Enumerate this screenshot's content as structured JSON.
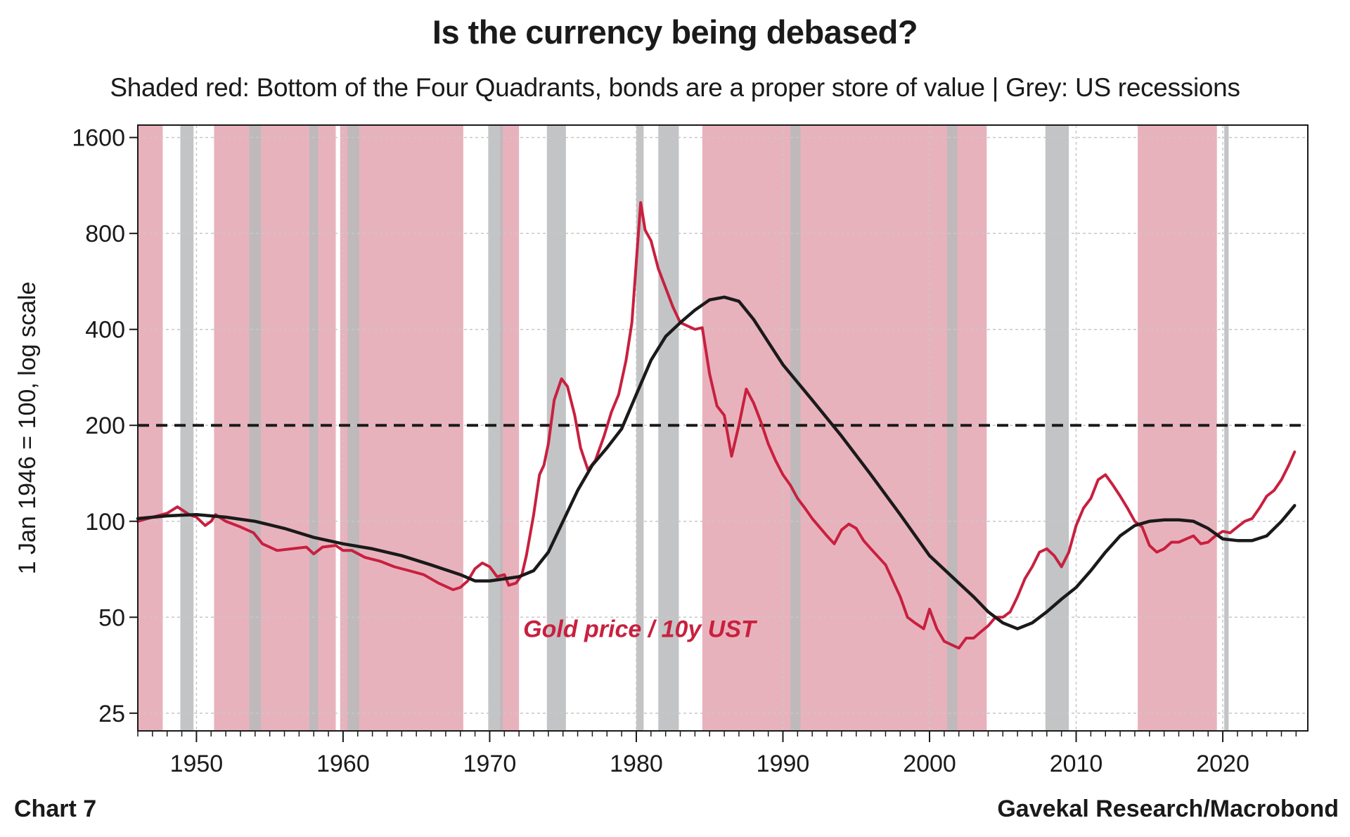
{
  "header": {
    "title": "Is the currency being debased?",
    "subtitle": "Shaded red: Bottom of the Four Quadrants, bonds are a proper store of value | Grey: US recessions"
  },
  "footer": {
    "chart_number": "Chart 7",
    "source": "Gavekal Research/Macrobond"
  },
  "chart_data": {
    "type": "line",
    "title": "Is the currency being debased?",
    "ylabel": "1 Jan 1946 = 100, log scale",
    "xlabel": "",
    "y_scale": "log2",
    "xlim": [
      1946.0,
      2025.8
    ],
    "ylim": [
      22,
      1750
    ],
    "y_ticks": [
      25,
      50,
      100,
      200,
      400,
      800,
      1600
    ],
    "y_tick_labels": [
      "25",
      "50",
      "100",
      "200",
      "400",
      "800",
      "1600"
    ],
    "x_ticks": [
      1950,
      1960,
      1970,
      1980,
      1990,
      2000,
      2010,
      2020
    ],
    "x_tick_labels": [
      "1950",
      "1960",
      "1970",
      "1980",
      "1990",
      "2000",
      "2010",
      "2020"
    ],
    "reference_line": {
      "value": 200,
      "style": "dashed",
      "color": "#1a1a1a"
    },
    "annotation": {
      "text": "Gold price / 10y UST",
      "x": 1972.0,
      "y": 46,
      "color": "#c8203f"
    },
    "colors": {
      "red_shade": "#e8b2bd",
      "grey_shade": "#b9babc",
      "gold_line": "#c8203f",
      "trend_line": "#1a1a1a",
      "grid": "#c8c8c8"
    },
    "red_shaded_periods": [
      [
        1946.0,
        1947.7
      ],
      [
        1951.2,
        1959.5
      ],
      [
        1959.8,
        1968.2
      ],
      [
        1970.7,
        1972.0
      ],
      [
        1984.5,
        2003.9
      ],
      [
        2014.2,
        2019.6
      ]
    ],
    "recession_periods": [
      [
        1948.9,
        1949.8
      ],
      [
        1953.6,
        1954.4
      ],
      [
        1957.7,
        1958.3
      ],
      [
        1960.3,
        1961.1
      ],
      [
        1969.9,
        1970.9
      ],
      [
        1973.9,
        1975.2
      ],
      [
        1980.0,
        1980.5
      ],
      [
        1981.5,
        1982.9
      ],
      [
        1990.5,
        1991.2
      ],
      [
        2001.2,
        2001.9
      ],
      [
        2007.9,
        2009.5
      ],
      [
        2020.1,
        2020.4
      ]
    ],
    "series": [
      {
        "name": "Gold price / 10y UST",
        "color": "#c8203f",
        "x": [
          1946.0,
          1947.0,
          1948.0,
          1948.7,
          1949.5,
          1950.0,
          1950.6,
          1951.0,
          1951.3,
          1952.0,
          1953.0,
          1953.9,
          1954.5,
          1955.5,
          1956.5,
          1957.5,
          1958.0,
          1958.6,
          1959.5,
          1960.0,
          1960.6,
          1961.5,
          1962.5,
          1963.5,
          1964.5,
          1965.5,
          1966.5,
          1967.5,
          1968.0,
          1968.5,
          1969.0,
          1969.5,
          1970.0,
          1970.5,
          1971.0,
          1971.3,
          1971.8,
          1972.2,
          1972.5,
          1973.0,
          1973.4,
          1973.7,
          1974.0,
          1974.4,
          1974.9,
          1975.3,
          1975.8,
          1976.2,
          1976.7,
          1977.2,
          1977.8,
          1978.3,
          1978.8,
          1979.3,
          1979.7,
          1980.05,
          1980.3,
          1980.6,
          1981.0,
          1981.5,
          1982.0,
          1982.5,
          1983.0,
          1983.5,
          1984.0,
          1984.5,
          1985.0,
          1985.5,
          1986.0,
          1986.5,
          1987.0,
          1987.5,
          1988.0,
          1988.5,
          1989.0,
          1989.5,
          1990.0,
          1990.5,
          1991.0,
          1991.5,
          1992.0,
          1993.0,
          1993.5,
          1994.0,
          1994.5,
          1995.0,
          1995.5,
          1996.0,
          1997.0,
          1998.0,
          1998.5,
          1999.0,
          1999.6,
          2000.0,
          2000.5,
          2001.0,
          2001.5,
          2002.0,
          2002.5,
          2003.0,
          2003.5,
          2004.0,
          2004.5,
          2005.0,
          2005.5,
          2006.0,
          2006.5,
          2007.0,
          2007.5,
          2008.0,
          2008.5,
          2009.0,
          2009.5,
          2010.0,
          2010.5,
          2011.0,
          2011.5,
          2012.0,
          2012.5,
          2013.0,
          2013.5,
          2014.0,
          2014.5,
          2015.0,
          2015.5,
          2016.0,
          2016.5,
          2017.0,
          2017.5,
          2018.0,
          2018.5,
          2019.0,
          2019.5,
          2020.0,
          2020.5,
          2021.0,
          2021.5,
          2022.0,
          2022.5,
          2023.0,
          2023.5,
          2024.0,
          2024.5,
          2024.9
        ],
        "values": [
          100,
          103,
          106,
          111,
          105,
          103,
          97,
          100,
          105,
          100,
          96,
          92,
          85,
          81,
          82,
          83,
          79,
          83,
          84,
          81,
          81,
          77,
          75,
          72,
          70,
          68,
          64,
          61,
          62,
          65,
          71,
          74,
          72,
          67,
          68,
          63,
          64,
          68,
          78,
          105,
          140,
          150,
          175,
          240,
          280,
          265,
          215,
          170,
          145,
          155,
          185,
          220,
          250,
          320,
          420,
          700,
          1000,
          820,
          760,
          620,
          540,
          470,
          420,
          410,
          400,
          405,
          290,
          230,
          215,
          160,
          200,
          260,
          235,
          205,
          175,
          155,
          140,
          130,
          118,
          110,
          102,
          90,
          85,
          94,
          98,
          95,
          87,
          82,
          73,
          58,
          50,
          48,
          46,
          53,
          46,
          42,
          41,
          40,
          43,
          43,
          45,
          47,
          50,
          50,
          52,
          58,
          66,
          72,
          80,
          82,
          78,
          72,
          80,
          97,
          110,
          118,
          135,
          140,
          130,
          120,
          110,
          100,
          96,
          84,
          80,
          82,
          86,
          86,
          88,
          90,
          85,
          86,
          90,
          93,
          92,
          96,
          100,
          102,
          110,
          120,
          125,
          135,
          150,
          165
        ]
      },
      {
        "name": "Trend",
        "color": "#1a1a1a",
        "x": [
          1946.0,
          1948.0,
          1950.0,
          1952.0,
          1954.0,
          1956.0,
          1958.0,
          1960.0,
          1962.0,
          1964.0,
          1966.0,
          1968.0,
          1969.0,
          1970.0,
          1971.0,
          1972.0,
          1973.0,
          1974.0,
          1975.0,
          1976.0,
          1977.0,
          1978.0,
          1979.0,
          1980.0,
          1981.0,
          1982.0,
          1983.0,
          1984.0,
          1985.0,
          1986.0,
          1987.0,
          1988.0,
          1989.0,
          1990.0,
          1992.0,
          1994.0,
          1996.0,
          1998.0,
          2000.0,
          2002.0,
          2003.0,
          2004.0,
          2005.0,
          2006.0,
          2007.0,
          2008.0,
          2009.0,
          2010.0,
          2011.0,
          2012.0,
          2013.0,
          2014.0,
          2015.0,
          2016.0,
          2017.0,
          2018.0,
          2019.0,
          2020.0,
          2021.0,
          2022.0,
          2023.0,
          2024.0,
          2024.9
        ],
        "values": [
          102,
          104,
          105,
          103,
          100,
          95,
          89,
          85,
          82,
          78,
          73,
          68,
          65,
          65,
          66,
          67,
          70,
          80,
          100,
          125,
          150,
          170,
          195,
          250,
          320,
          380,
          420,
          460,
          495,
          505,
          490,
          430,
          365,
          310,
          240,
          185,
          140,
          105,
          78,
          64,
          58,
          52,
          48,
          46,
          48,
          52,
          57,
          62,
          70,
          80,
          90,
          97,
          100,
          101,
          101,
          100,
          95,
          88,
          87,
          87,
          90,
          100,
          112
        ]
      }
    ]
  }
}
